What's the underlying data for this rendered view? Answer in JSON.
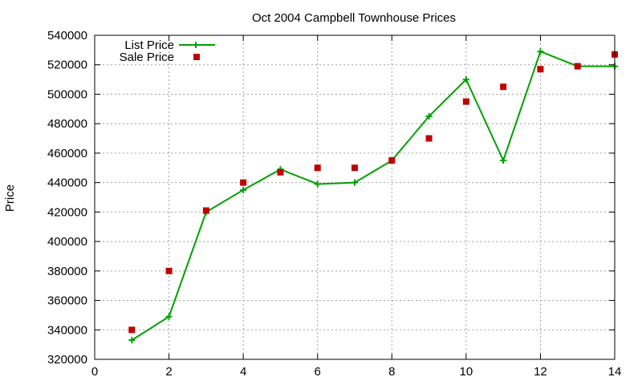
{
  "chart_data": {
    "type": "line",
    "title": "Oct 2004 Campbell Townhouse Prices",
    "xlabel": "",
    "ylabel": "Price",
    "xlim": [
      0,
      14
    ],
    "ylim": [
      320000,
      540000
    ],
    "x_ticks": [
      0,
      2,
      4,
      6,
      8,
      10,
      12,
      14
    ],
    "y_ticks": [
      320000,
      340000,
      360000,
      380000,
      400000,
      420000,
      440000,
      460000,
      480000,
      500000,
      520000,
      540000
    ],
    "grid": true,
    "legend_position": "top-left",
    "series": [
      {
        "name": "List Price",
        "style": "lines+crosses",
        "color": "#00a000",
        "x": [
          1,
          2,
          3,
          4,
          5,
          6,
          7,
          8,
          9,
          10,
          11,
          12,
          13,
          14
        ],
        "y": [
          333000,
          349000,
          420000,
          435000,
          449000,
          439000,
          440000,
          455000,
          485000,
          510000,
          455000,
          529000,
          519000,
          519000
        ]
      },
      {
        "name": "Sale Price",
        "style": "squares",
        "color": "#c00000",
        "x": [
          1,
          2,
          3,
          4,
          5,
          6,
          7,
          8,
          9,
          10,
          11,
          12,
          13,
          14
        ],
        "y": [
          340000,
          380000,
          421000,
          440000,
          447000,
          450000,
          450000,
          455000,
          470000,
          495000,
          505000,
          517000,
          519000,
          527000
        ]
      }
    ]
  }
}
